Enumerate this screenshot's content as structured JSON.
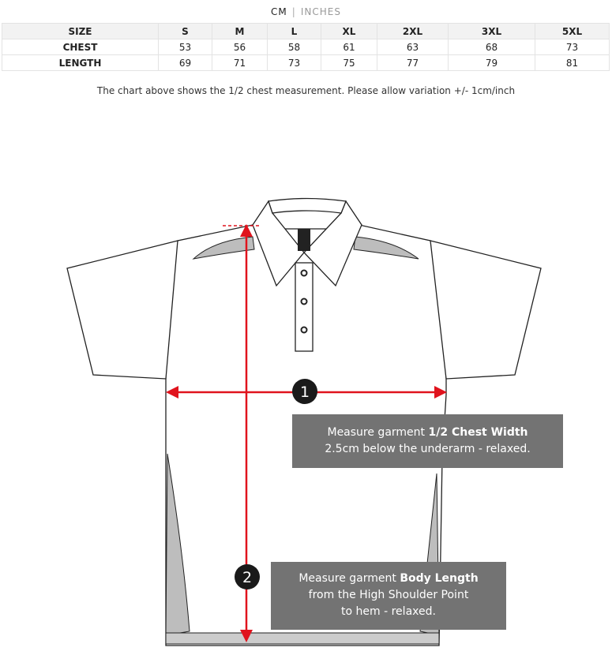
{
  "units": {
    "active": "CM",
    "inactive": "INCHES"
  },
  "table": {
    "headers": [
      "SIZE",
      "S",
      "M",
      "L",
      "XL",
      "2XL",
      "3XL",
      "5XL"
    ],
    "rows": [
      {
        "label": "CHEST",
        "values": [
          "53",
          "56",
          "58",
          "61",
          "63",
          "68",
          "73"
        ]
      },
      {
        "label": "LENGTH",
        "values": [
          "69",
          "71",
          "73",
          "75",
          "77",
          "79",
          "81"
        ]
      }
    ]
  },
  "note": "The chart above shows the 1/2 chest measurement. Please allow variation +/- 1cm/inch",
  "diagram": {
    "accent_color": "#e0131d",
    "marker1": "1",
    "marker2": "2",
    "chest_box": {
      "prefix": "Measure garment ",
      "bold": "1/2 Chest Width",
      "line2": "2.5cm below the underarm - relaxed."
    },
    "length_box": {
      "prefix": "Measure garment ",
      "bold": "Body Length",
      "line2": "from the High Shoulder Point",
      "line3": "to hem - relaxed."
    }
  }
}
